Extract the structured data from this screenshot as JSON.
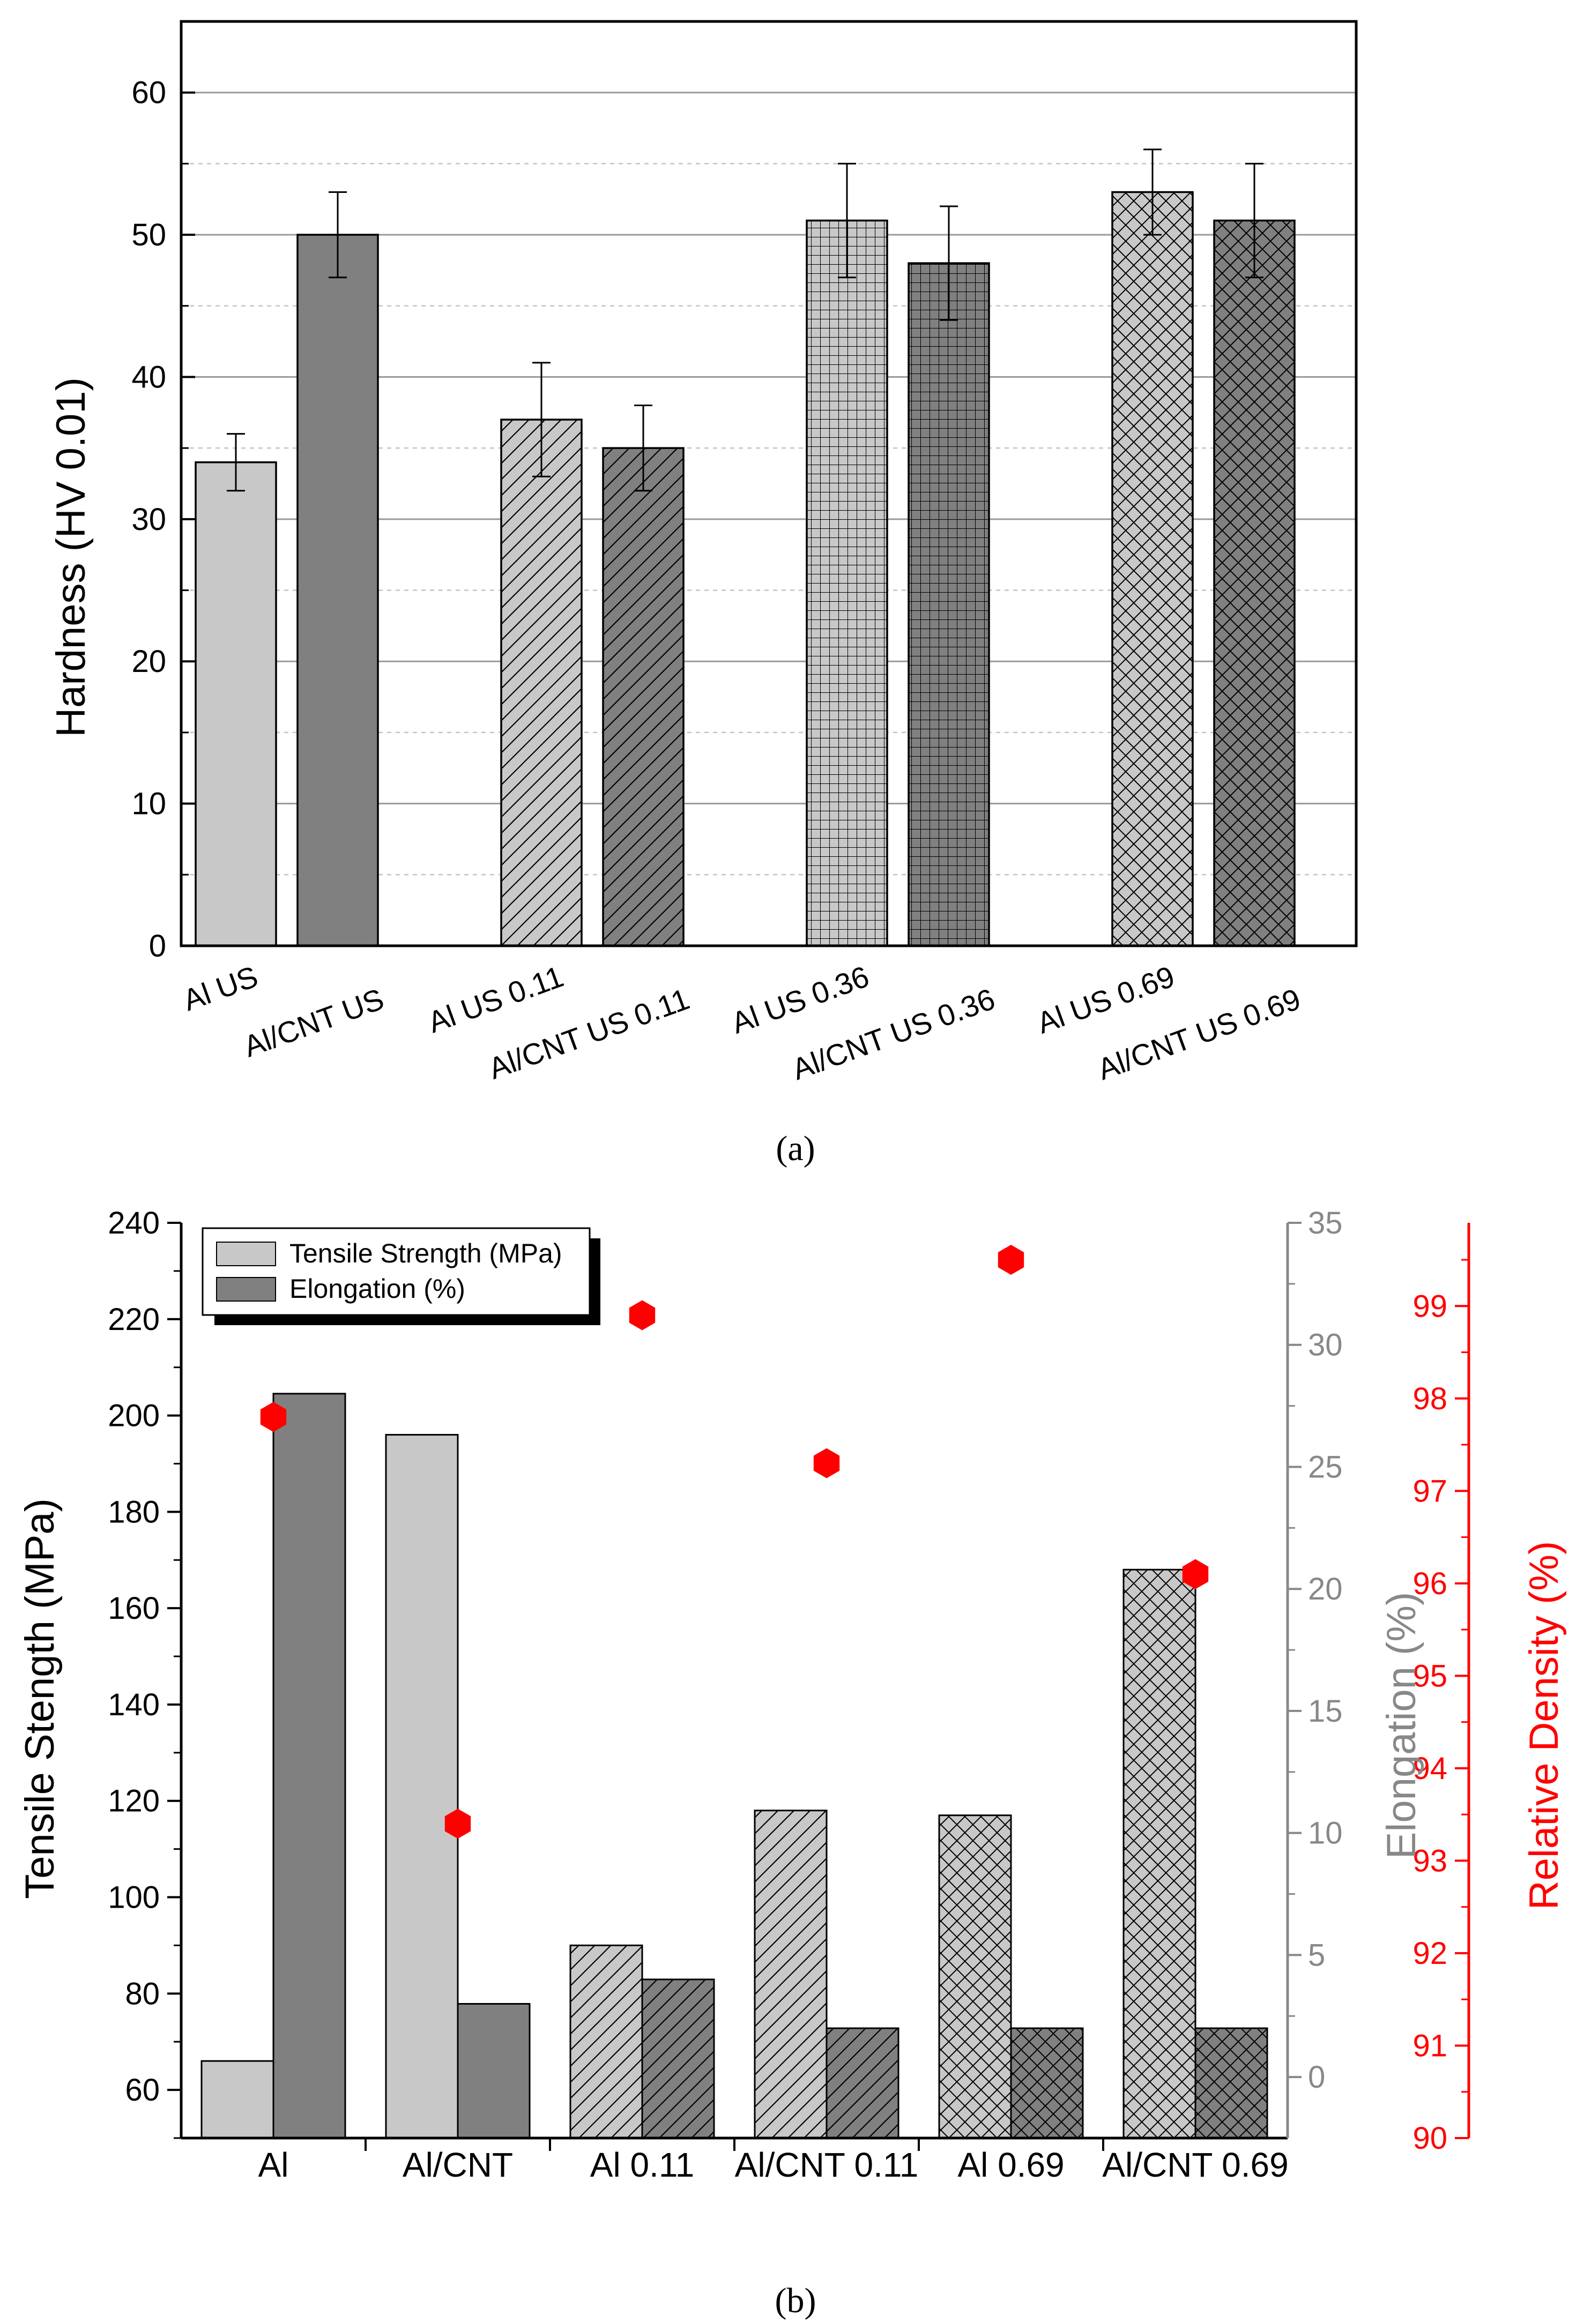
{
  "chart_data": [
    {
      "panel": "(a)",
      "type": "bar",
      "ylabel": "Hardness (HV 0.01)",
      "ylim": [
        0,
        65
      ],
      "yticks": [
        "0",
        "10",
        "20",
        "30",
        "40",
        "50",
        "60"
      ],
      "grid": true,
      "categories": [
        "Al US",
        "Al/CNT US",
        "Al US 0.11",
        "Al/CNT US 0.11",
        "Al US 0.36",
        "Al/CNT US 0.36",
        "Al US 0.69",
        "Al/CNT US 0.69"
      ],
      "values": [
        34,
        50,
        37,
        35,
        51,
        48,
        53,
        51
      ],
      "errors": [
        2,
        3,
        4,
        3,
        4,
        4,
        3,
        4
      ],
      "fill_colors": [
        "#c8c8c8",
        "#808080",
        "#c8c8c8",
        "#808080",
        "#c8c8c8",
        "#808080",
        "#c8c8c8",
        "#808080"
      ],
      "patterns": [
        "none",
        "none",
        "diagonal",
        "diagonal",
        "grid",
        "grid",
        "crosshatch",
        "crosshatch"
      ]
    },
    {
      "panel": "(b)",
      "type": "bar",
      "ylabel": "Tensile Stength (MPa)",
      "ylabel_right": "Elongation (%)",
      "ylabel_right2": "Relative Density (%)",
      "ylim": [
        50,
        240
      ],
      "ylim_right": [
        -2.5,
        35
      ],
      "ylim_right2": [
        90,
        99.9
      ],
      "yticks": [
        "60",
        "80",
        "100",
        "120",
        "140",
        "160",
        "180",
        "200",
        "220",
        "240"
      ],
      "yticks_right": [
        "0",
        "5",
        "10",
        "15",
        "20",
        "25",
        "30",
        "35"
      ],
      "yticks_right2": [
        "90",
        "91",
        "92",
        "93",
        "94",
        "95",
        "96",
        "97",
        "98",
        "99"
      ],
      "categories": [
        "Al",
        "Al/CNT",
        "Al 0.11",
        "Al/CNT 0.11",
        "Al 0.69",
        "Al/CNT 0.69"
      ],
      "legend": [
        "Tensile Strength (MPa)",
        "Elongation (%)"
      ],
      "legend_position": "top-left",
      "series": [
        {
          "name": "Tensile Strength (MPa)",
          "axis": "left",
          "values": [
            66,
            196,
            90,
            118,
            117,
            168
          ],
          "color": "#c8c8c8"
        },
        {
          "name": "Elongation (%)",
          "axis": "right",
          "values": [
            28,
            3,
            4,
            2,
            2,
            2
          ],
          "color": "#808080"
        },
        {
          "name": "Relative Density (%)",
          "axis": "right2",
          "type": "scatter",
          "values": [
            97.8,
            93.4,
            98.9,
            97.3,
            99.5,
            96.1
          ],
          "color": "#ff0000"
        }
      ],
      "patterns": [
        "none",
        "none",
        "diagonal",
        "diagonal",
        "crosshatch",
        "crosshatch"
      ]
    }
  ]
}
